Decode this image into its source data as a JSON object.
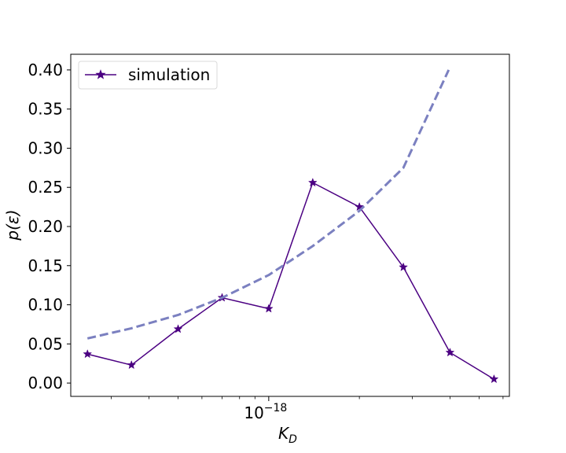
{
  "chart_data": {
    "type": "line",
    "xlabel": "K",
    "xlabel_sub": "D",
    "ylabel": "p(ε)",
    "x_scale": "log",
    "x_tick_labels": [
      {
        "base": "10",
        "exp": "−18",
        "value": 1e-18
      }
    ],
    "ylim": [
      -0.017,
      0.42
    ],
    "y_ticks": [
      0.0,
      0.05,
      0.1,
      0.15,
      0.2,
      0.25,
      0.3,
      0.35,
      0.4
    ],
    "y_tick_labels": [
      "0.00",
      "0.05",
      "0.10",
      "0.15",
      "0.20",
      "0.25",
      "0.30",
      "0.35",
      "0.40"
    ],
    "grid": false,
    "legend_position": "top-left",
    "series": [
      {
        "name": "simulation",
        "style": "solid",
        "marker": "star",
        "color": "#4b0082",
        "x": [
          2.5e-19,
          3.5e-19,
          5e-19,
          7e-19,
          1e-18,
          1.4e-18,
          2e-18,
          2.8e-18,
          4e-18,
          5.6e-18
        ],
        "y": [
          0.037,
          0.023,
          0.069,
          0.109,
          0.095,
          0.256,
          0.225,
          0.148,
          0.039,
          0.005
        ]
      },
      {
        "style": "dashed",
        "color": "#7b80c0",
        "x": [
          2.5e-19,
          3.5e-19,
          5e-19,
          7e-19,
          1e-18,
          1.4e-18,
          2e-18,
          2.8e-18,
          3.96e-18
        ],
        "y": [
          0.057,
          0.07,
          0.087,
          0.109,
          0.138,
          0.175,
          0.22,
          0.275,
          0.4
        ]
      }
    ],
    "xlim": [
      2.2e-19,
      6.3e-18
    ]
  }
}
